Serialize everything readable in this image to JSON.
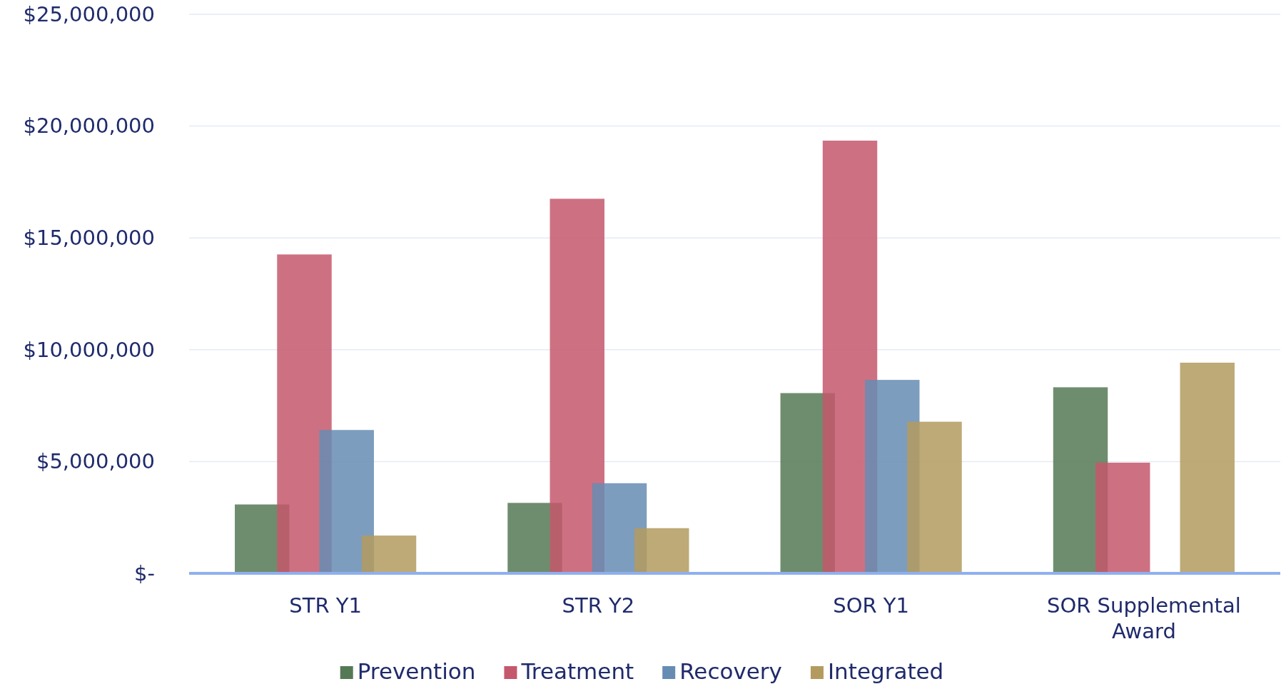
{
  "chart_data": {
    "type": "bar",
    "categories": [
      "STR Y1",
      "STR Y2",
      "SOR Y1",
      "SOR Supplemental Award"
    ],
    "series": [
      {
        "name": "Prevention",
        "color": "#557955",
        "values": [
          3080000,
          3150000,
          8060000,
          8320000
        ]
      },
      {
        "name": "Treatment",
        "color": "#c4586c",
        "values": [
          14260000,
          16750000,
          19350000,
          4950000
        ]
      },
      {
        "name": "Recovery",
        "color": "#668cb3",
        "values": [
          6410000,
          4030000,
          8650000,
          null
        ]
      },
      {
        "name": "Integrated",
        "color": "#b39b5f",
        "values": [
          1690000,
          2020000,
          6780000,
          9420000
        ]
      }
    ],
    "ylim": [
      0,
      25000000
    ],
    "yticks": [
      {
        "value": 0,
        "label": "$-"
      },
      {
        "value": 5000000,
        "label": "$5,000,000"
      },
      {
        "value": 10000000,
        "label": "$10,000,000"
      },
      {
        "value": 15000000,
        "label": "$15,000,000"
      },
      {
        "value": 20000000,
        "label": "$20,000,000"
      },
      {
        "value": 25000000,
        "label": "$25,000,000"
      }
    ],
    "grid": "y",
    "legend": "bottom"
  }
}
